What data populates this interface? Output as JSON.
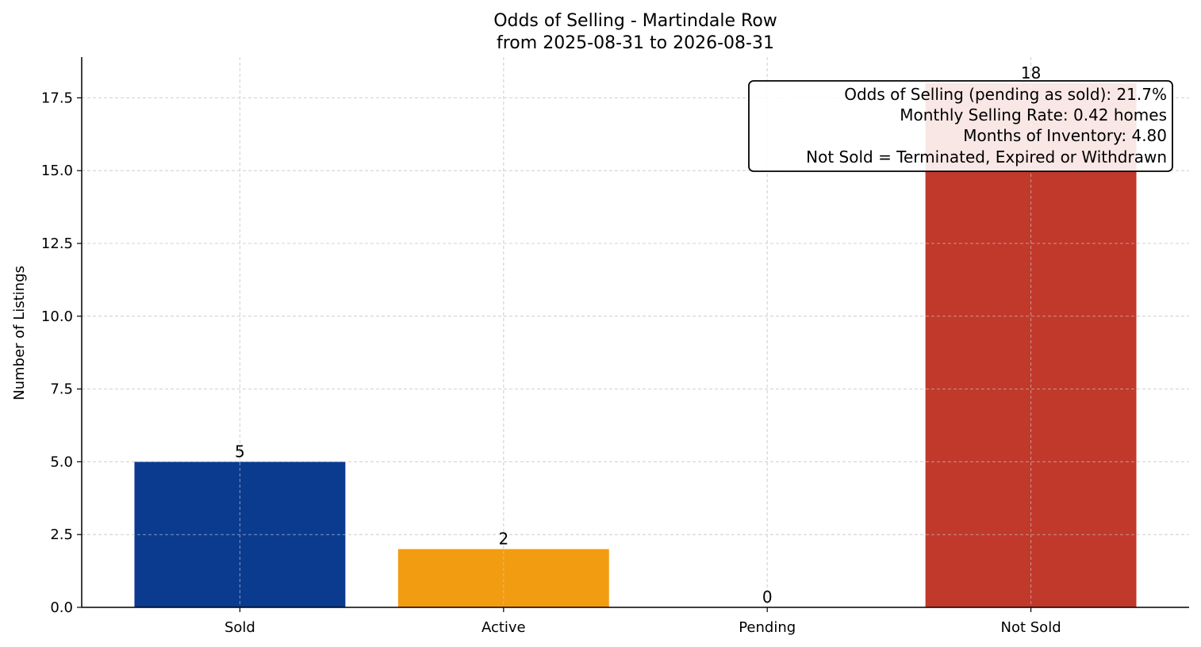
{
  "chart_data": {
    "type": "bar",
    "title_lines": [
      "Odds of Selling - Martindale Row",
      "from 2025-08-31 to 2026-08-31"
    ],
    "xlabel": "",
    "ylabel": "Number of Listings",
    "categories": [
      "Sold",
      "Active",
      "Pending",
      "Not Sold"
    ],
    "values": [
      5,
      2,
      0,
      18
    ],
    "data_labels": [
      "5",
      "2",
      "0",
      "18"
    ],
    "colors": [
      "#0b3b8f",
      "#f29c12",
      "#c0392b",
      "#c0392b"
    ],
    "ylim": [
      0,
      18.9
    ],
    "yticks": [
      0.0,
      2.5,
      5.0,
      7.5,
      10.0,
      12.5,
      15.0,
      17.5
    ],
    "ytick_labels": [
      "0.0",
      "2.5",
      "5.0",
      "7.5",
      "10.0",
      "12.5",
      "15.0",
      "17.5"
    ],
    "grid": true,
    "annotation_lines": [
      "Odds of Selling (pending as sold): 21.7%",
      "Monthly Selling Rate: 0.42 homes",
      "Months of Inventory: 4.80",
      "Not Sold = Terminated, Expired or Withdrawn"
    ],
    "annotation_placement": "top-right"
  }
}
